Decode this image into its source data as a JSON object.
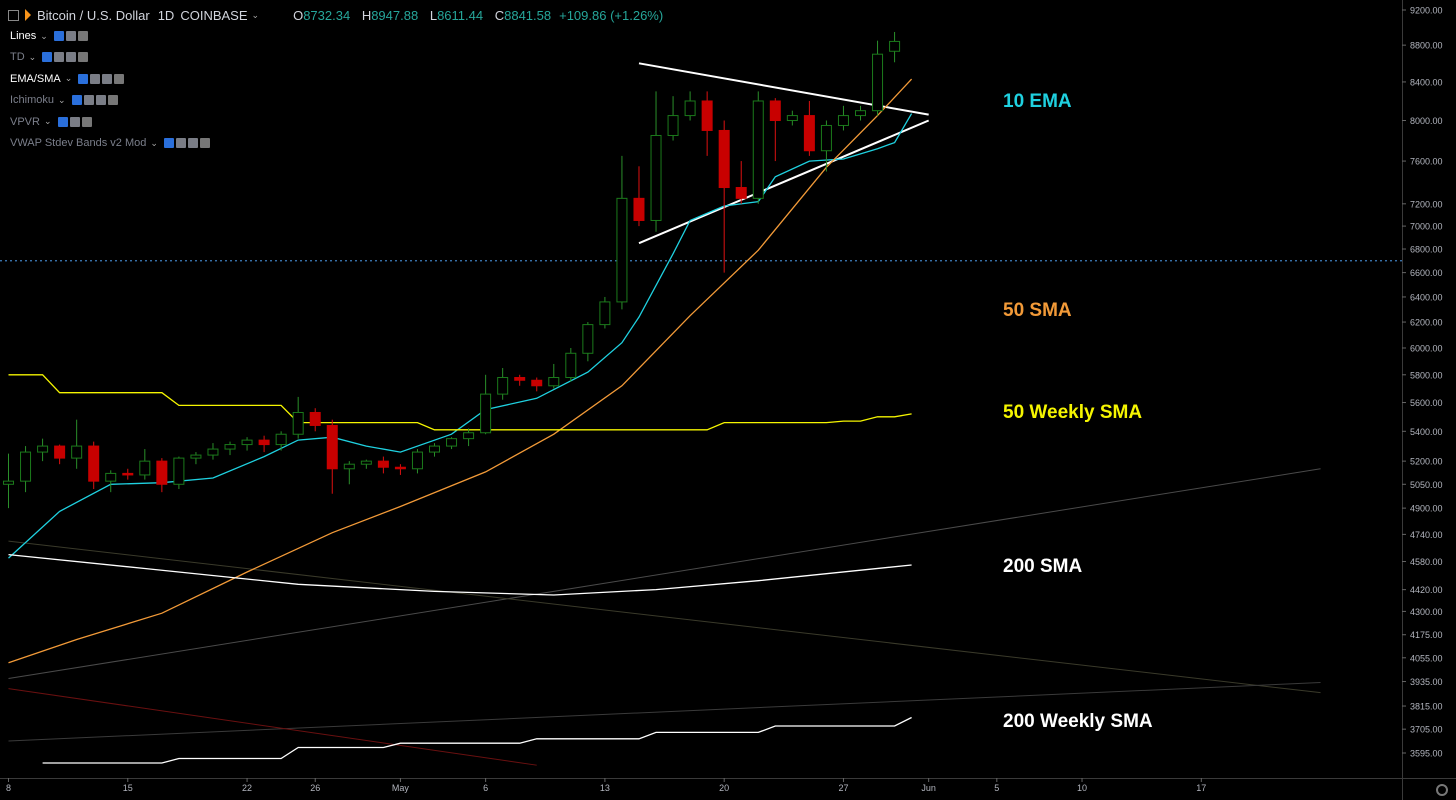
{
  "header": {
    "title": "Bitcoin / U.S. Dollar",
    "interval": "1D",
    "exchange": "COINBASE",
    "open_label": "O",
    "open": "8732.34",
    "high_label": "H",
    "high": "8947.88",
    "low_label": "L",
    "low": "8611.44",
    "close_label": "C",
    "close": "8841.58",
    "change": "+109.86 (+1.26%)"
  },
  "indicators": [
    {
      "name": "Lines",
      "active": true,
      "buttons": 3
    },
    {
      "name": "TD",
      "active": false,
      "buttons": 4
    },
    {
      "name": "EMA/SMA",
      "active": true,
      "buttons": 4
    },
    {
      "name": "Ichimoku",
      "active": false,
      "buttons": 4
    },
    {
      "name": "VPVR",
      "active": false,
      "buttons": 3
    },
    {
      "name": "VWAP Stdev Bands v2 Mod",
      "active": false,
      "buttons": 4
    }
  ],
  "annotations": [
    {
      "text": "10 EMA",
      "color": "#1fd1e0"
    },
    {
      "text": "50 SMA",
      "color": "#f29a38"
    },
    {
      "text": "50 Weekly SMA",
      "color": "#f5f500"
    },
    {
      "text": "200 SMA",
      "color": "#ffffff"
    },
    {
      "text": "200 Weekly SMA",
      "color": "#ffffff"
    }
  ],
  "chart_data": {
    "type": "candlestick",
    "scale": "log",
    "y_tick_labels": [
      "9200.00",
      "8800.00",
      "8400.00",
      "8000.00",
      "7600.00",
      "7200.00",
      "7000.00",
      "6800.00",
      "6600.00",
      "6400.00",
      "6200.00",
      "6000.00",
      "5800.00",
      "5600.00",
      "5400.00",
      "5200.00",
      "5050.00",
      "4900.00",
      "4740.00",
      "4580.00",
      "4420.00",
      "4300.00",
      "4175.00",
      "4055.00",
      "3935.00",
      "3815.00",
      "3705.00",
      "3595.00"
    ],
    "x_tick_labels": [
      {
        "label": "8",
        "day": 0
      },
      {
        "label": "15",
        "day": 7
      },
      {
        "label": "22",
        "day": 14
      },
      {
        "label": "26",
        "day": 18
      },
      {
        "label": "May",
        "day": 23
      },
      {
        "label": "6",
        "day": 28
      },
      {
        "label": "13",
        "day": 35
      },
      {
        "label": "20",
        "day": 42
      },
      {
        "label": "27",
        "day": 49
      },
      {
        "label": "Jun",
        "day": 54
      },
      {
        "label": "5",
        "day": 58
      },
      {
        "label": "10",
        "day": 63
      },
      {
        "label": "17",
        "day": 70
      }
    ],
    "candles": [
      [
        5050,
        5250,
        4900,
        5070
      ],
      [
        5070,
        5300,
        5000,
        5260
      ],
      [
        5260,
        5350,
        5200,
        5300
      ],
      [
        5300,
        5310,
        5180,
        5220
      ],
      [
        5220,
        5480,
        5150,
        5300
      ],
      [
        5300,
        5330,
        5020,
        5070
      ],
      [
        5070,
        5140,
        5000,
        5120
      ],
      [
        5120,
        5150,
        5080,
        5110
      ],
      [
        5110,
        5280,
        5080,
        5200
      ],
      [
        5200,
        5220,
        5000,
        5050
      ],
      [
        5050,
        5230,
        5020,
        5220
      ],
      [
        5220,
        5260,
        5180,
        5240
      ],
      [
        5240,
        5320,
        5210,
        5280
      ],
      [
        5280,
        5330,
        5240,
        5310
      ],
      [
        5310,
        5360,
        5270,
        5340
      ],
      [
        5340,
        5370,
        5260,
        5310
      ],
      [
        5310,
        5400,
        5270,
        5380
      ],
      [
        5380,
        5640,
        5350,
        5530
      ],
      [
        5530,
        5560,
        5400,
        5440
      ],
      [
        5440,
        5480,
        4990,
        5150
      ],
      [
        5150,
        5200,
        5050,
        5180
      ],
      [
        5180,
        5210,
        5150,
        5200
      ],
      [
        5200,
        5230,
        5120,
        5160
      ],
      [
        5160,
        5180,
        5110,
        5150
      ],
      [
        5150,
        5280,
        5120,
        5260
      ],
      [
        5260,
        5320,
        5230,
        5300
      ],
      [
        5300,
        5360,
        5280,
        5350
      ],
      [
        5350,
        5420,
        5300,
        5390
      ],
      [
        5390,
        5800,
        5380,
        5660
      ],
      [
        5660,
        5850,
        5620,
        5780
      ],
      [
        5780,
        5800,
        5720,
        5760
      ],
      [
        5760,
        5780,
        5680,
        5720
      ],
      [
        5720,
        5880,
        5700,
        5780
      ],
      [
        5780,
        6000,
        5750,
        5960
      ],
      [
        5960,
        6200,
        5900,
        6180
      ],
      [
        6180,
        6400,
        6150,
        6360
      ],
      [
        6360,
        7650,
        6300,
        7250
      ],
      [
        7250,
        7550,
        7000,
        7050
      ],
      [
        7050,
        8300,
        6950,
        7850
      ],
      [
        7850,
        8250,
        7800,
        8050
      ],
      [
        8050,
        8300,
        8000,
        8200
      ],
      [
        8200,
        8300,
        7650,
        7900
      ],
      [
        7900,
        8000,
        6600,
        7350
      ],
      [
        7350,
        7600,
        7200,
        7250
      ],
      [
        7250,
        8300,
        7200,
        8200
      ],
      [
        8200,
        8230,
        7600,
        8000
      ],
      [
        8000,
        8100,
        7950,
        8050
      ],
      [
        8050,
        8200,
        7650,
        7700
      ],
      [
        7700,
        8000,
        7500,
        7950
      ],
      [
        7950,
        8150,
        7900,
        8050
      ],
      [
        8050,
        8150,
        8000,
        8100
      ],
      [
        8100,
        8850,
        8050,
        8700
      ],
      [
        8732.34,
        8947.88,
        8611.44,
        8841.58
      ]
    ],
    "series": [
      {
        "name": "10 EMA",
        "color": "#1fd1e0",
        "points": [
          [
            0,
            4600
          ],
          [
            3,
            4880
          ],
          [
            6,
            5050
          ],
          [
            9,
            5060
          ],
          [
            12,
            5090
          ],
          [
            15,
            5230
          ],
          [
            17,
            5340
          ],
          [
            19,
            5360
          ],
          [
            21,
            5300
          ],
          [
            23,
            5260
          ],
          [
            26,
            5380
          ],
          [
            28,
            5550
          ],
          [
            31,
            5630
          ],
          [
            34,
            5820
          ],
          [
            36,
            6040
          ],
          [
            37,
            6240
          ],
          [
            39,
            6760
          ],
          [
            40,
            7050
          ],
          [
            42,
            7180
          ],
          [
            44,
            7220
          ],
          [
            45,
            7450
          ],
          [
            47,
            7600
          ],
          [
            49,
            7620
          ],
          [
            51,
            7720
          ],
          [
            52,
            7780
          ],
          [
            53,
            8070
          ]
        ]
      },
      {
        "name": "50 SMA",
        "color": "#f29a38",
        "points": [
          [
            0,
            4030
          ],
          [
            4,
            4150
          ],
          [
            9,
            4290
          ],
          [
            14,
            4520
          ],
          [
            19,
            4750
          ],
          [
            23,
            4910
          ],
          [
            28,
            5130
          ],
          [
            32,
            5380
          ],
          [
            36,
            5720
          ],
          [
            40,
            6250
          ],
          [
            44,
            6790
          ],
          [
            48,
            7540
          ],
          [
            51,
            8050
          ],
          [
            53,
            8430
          ]
        ]
      },
      {
        "name": "50 Weekly SMA",
        "color": "#f5f500",
        "points": [
          [
            0,
            5800
          ],
          [
            2,
            5800
          ],
          [
            3,
            5670
          ],
          [
            9,
            5670
          ],
          [
            10,
            5580
          ],
          [
            16,
            5580
          ],
          [
            17,
            5460
          ],
          [
            24,
            5460
          ],
          [
            25,
            5410
          ],
          [
            41,
            5410
          ],
          [
            42,
            5460
          ],
          [
            48,
            5460
          ],
          [
            49,
            5470
          ],
          [
            50,
            5470
          ],
          [
            51,
            5500
          ],
          [
            52,
            5500
          ],
          [
            53,
            5520
          ]
        ]
      },
      {
        "name": "200 SMA",
        "color": "#ffffff",
        "points": [
          [
            0,
            4620
          ],
          [
            8,
            4540
          ],
          [
            17,
            4450
          ],
          [
            25,
            4410
          ],
          [
            32,
            4390
          ],
          [
            38,
            4420
          ],
          [
            44,
            4470
          ],
          [
            48,
            4510
          ],
          [
            53,
            4560
          ]
        ]
      },
      {
        "name": "200 Weekly SMA",
        "color": "#ffffff",
        "points": [
          [
            2,
            3550
          ],
          [
            9,
            3550
          ],
          [
            10,
            3570
          ],
          [
            16,
            3570
          ],
          [
            17,
            3620
          ],
          [
            22,
            3620
          ],
          [
            23,
            3640
          ],
          [
            30,
            3640
          ],
          [
            31,
            3660
          ],
          [
            37,
            3660
          ],
          [
            38,
            3690
          ],
          [
            44,
            3690
          ],
          [
            45,
            3720
          ],
          [
            52,
            3720
          ],
          [
            53,
            3760
          ]
        ]
      }
    ],
    "trendlines": [
      {
        "name": "triangle-upper",
        "color": "#ffffff",
        "from": [
          37,
          8600
        ],
        "to": [
          54,
          8060
        ]
      },
      {
        "name": "triangle-lower",
        "color": "#ffffff",
        "from": [
          37,
          6850
        ],
        "to": [
          54,
          8000
        ]
      },
      {
        "name": "dark-line-a",
        "color": "#4a4a4a",
        "from": [
          0,
          3950
        ],
        "to": [
          77,
          5150
        ]
      },
      {
        "name": "dark-line-b",
        "color": "#3a3a2a",
        "from": [
          0,
          4700
        ],
        "to": [
          77,
          3880
        ]
      },
      {
        "name": "dark-line-c",
        "color": "#3a3a3a",
        "from": [
          0,
          3650
        ],
        "to": [
          77,
          3930
        ]
      },
      {
        "name": "red-line",
        "color": "#6a1010",
        "from": [
          0,
          3900
        ],
        "to": [
          31,
          3540
        ]
      }
    ],
    "horizontal_line": {
      "price": 6700,
      "color": "#3f7fbf"
    },
    "up_color": "#1b7a1b",
    "down_color": "#c80000"
  }
}
